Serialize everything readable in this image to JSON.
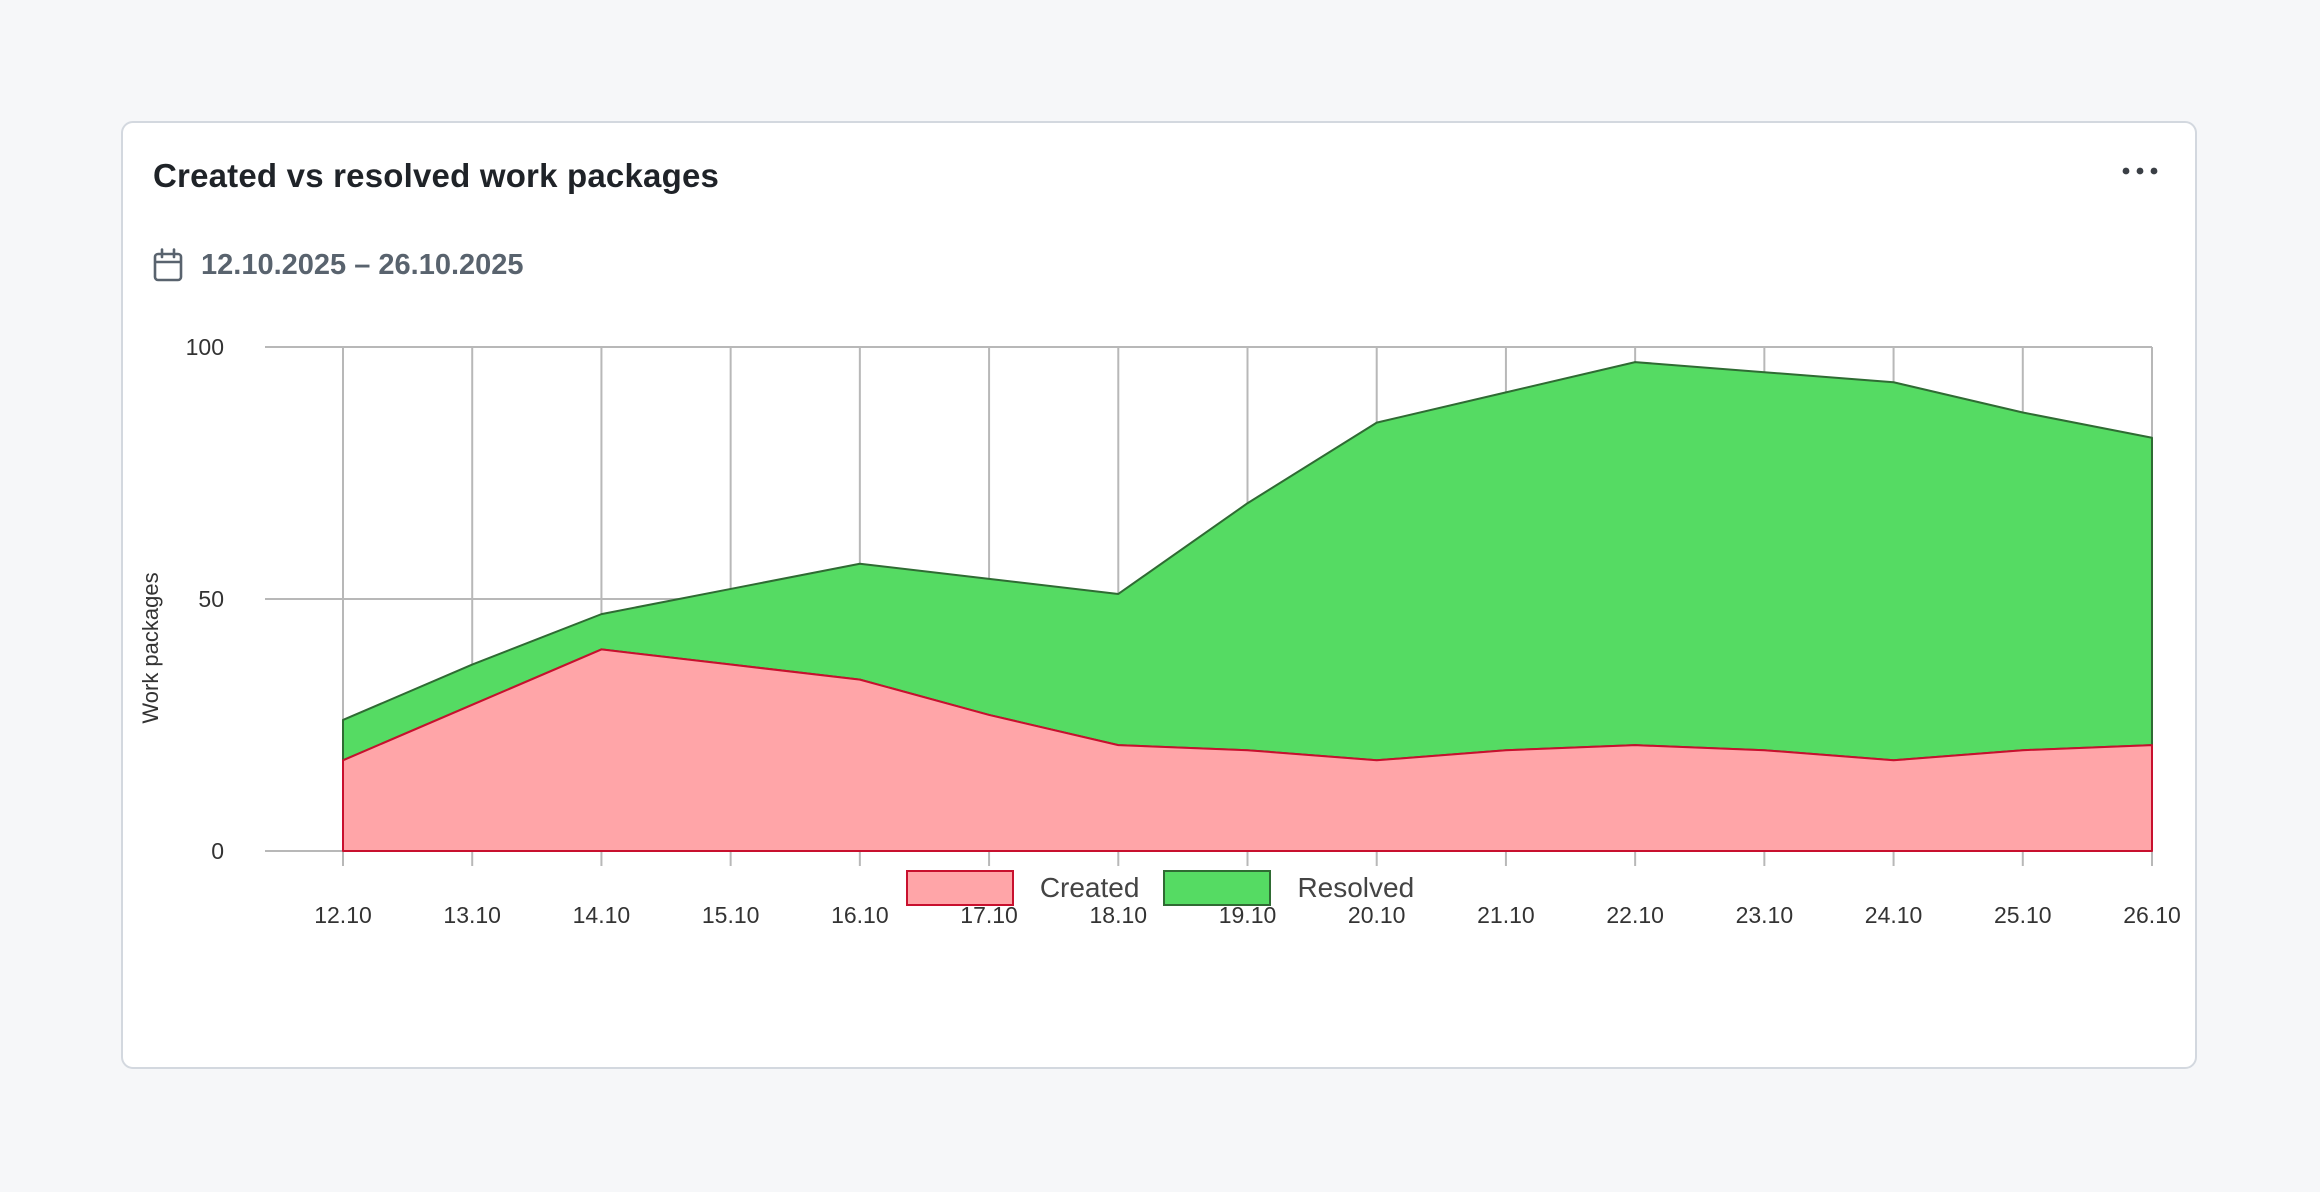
{
  "widget": {
    "title": "Created vs resolved work packages",
    "date_range": "12.10.2025 – 26.10.2025",
    "calendar_icon": "calendar-icon",
    "more_icon": "more-horizontal-icon"
  },
  "chart_data": {
    "type": "area",
    "stacked": true,
    "categories": [
      "12.10",
      "13.10",
      "14.10",
      "15.10",
      "16.10",
      "17.10",
      "18.10",
      "19.10",
      "20.10",
      "21.10",
      "22.10",
      "23.10",
      "24.10",
      "25.10",
      "26.10"
    ],
    "ylabel": "Work packages",
    "ylim": [
      0,
      100
    ],
    "yticks": [
      0,
      50,
      100
    ],
    "grid": true,
    "legend_position": "bottom-center",
    "series": [
      {
        "name": "Created",
        "values": [
          18,
          29,
          40,
          37,
          34,
          27,
          21,
          20,
          18,
          20,
          21,
          20,
          18,
          20,
          21
        ],
        "fill": "#ffa5a8",
        "stroke": "#c8102e"
      },
      {
        "name": "Resolved",
        "values": [
          8,
          8,
          7,
          15,
          23,
          27,
          30,
          49,
          67,
          71,
          76,
          75,
          75,
          67,
          61
        ],
        "fill": "#55db63",
        "stroke": "#2f6b33"
      }
    ]
  }
}
